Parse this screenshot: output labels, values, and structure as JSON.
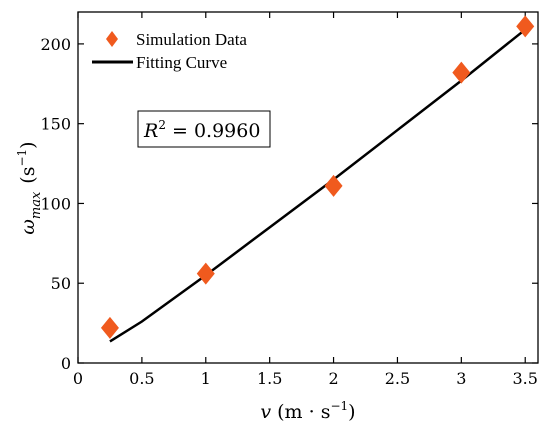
{
  "chart_data": {
    "type": "scatter",
    "xlim": [
      0,
      3.6
    ],
    "ylim": [
      0,
      220
    ],
    "xticks": [
      0,
      0.5,
      1,
      1.5,
      2,
      2.5,
      3,
      3.5
    ],
    "xtick_labels": [
      "0",
      "0.5",
      "1",
      "1.5",
      "2",
      "2.5",
      "3",
      "3.5"
    ],
    "yticks": [
      0,
      50,
      100,
      150,
      200
    ],
    "ytick_labels": [
      "0",
      "50",
      "100",
      "150",
      "200"
    ],
    "xlabel": {
      "var": "v",
      "unit": "(m · s",
      "sup": "−1",
      "close": ")"
    },
    "ylabel": {
      "var": "ω",
      "sub": "max",
      "unit": "(s",
      "sup": "−1",
      "close": ")"
    },
    "grid": false,
    "legend_position": "top-left",
    "series": [
      {
        "name": "Simulation Data",
        "kind": "scatter",
        "marker": "diamond",
        "color": "#f05a1e",
        "x": [
          0.25,
          1,
          2,
          3,
          3.5
        ],
        "y": [
          22,
          56,
          111,
          182,
          211
        ]
      },
      {
        "name": "Fitting Curve",
        "kind": "line",
        "color": "#000000",
        "x": [
          0.25,
          0.5,
          1,
          1.5,
          2,
          2.5,
          3,
          3.5
        ],
        "y": [
          13.5,
          26,
          55,
          85,
          115,
          146,
          177,
          209
        ]
      }
    ],
    "annotation": {
      "base": "R",
      "sup": "2",
      "text": " = 0.9960"
    }
  }
}
